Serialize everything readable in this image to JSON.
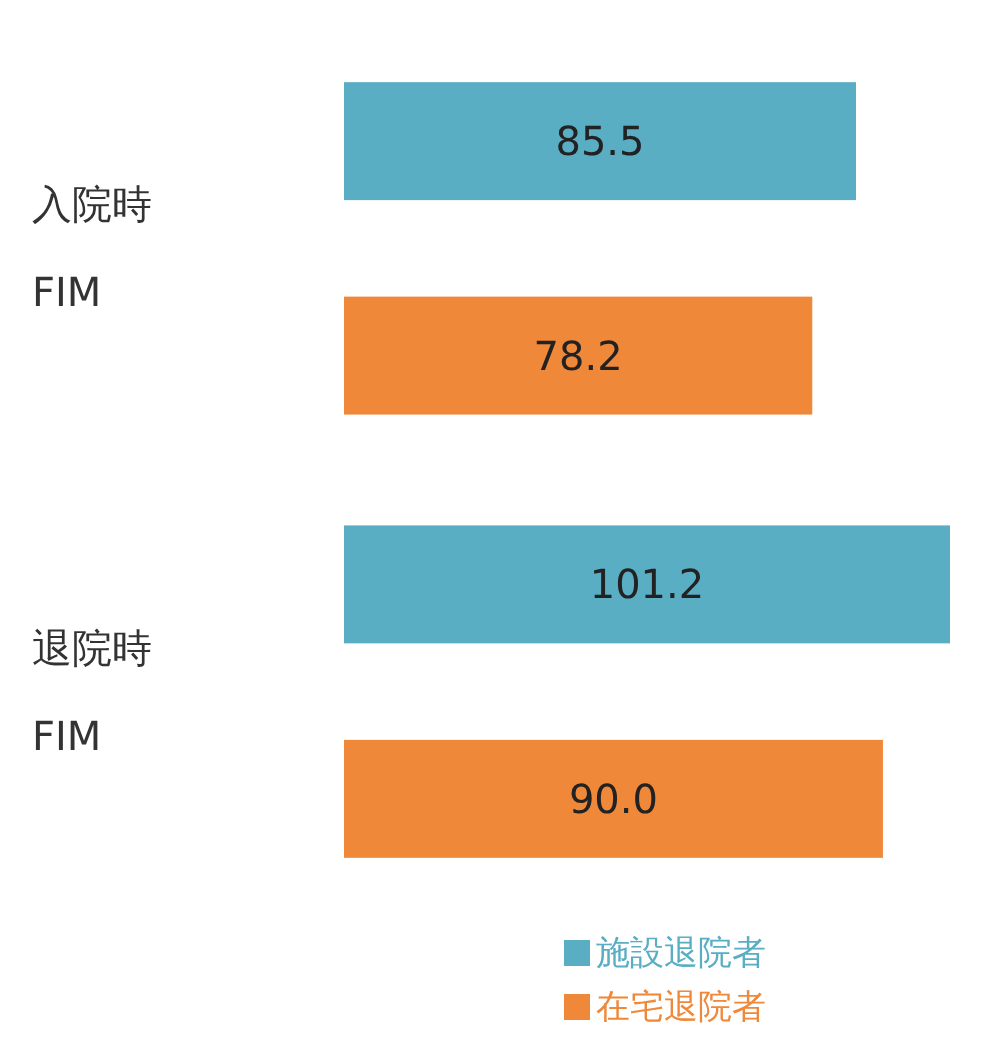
{
  "chart_data": {
    "type": "bar",
    "orientation": "horizontal",
    "categories": [
      "入院時\nFIM",
      "退院時\nFIM"
    ],
    "series": [
      {
        "name": "施設退院者",
        "color": "#5aaec4",
        "values": [
          85.5,
          101.2
        ],
        "value_labels": [
          "85.5",
          "101.2"
        ]
      },
      {
        "name": "在宅退院者",
        "color": "#f0883a",
        "values": [
          78.2,
          90.0
        ],
        "value_labels": [
          "78.2",
          "90.0"
        ]
      }
    ],
    "legend": "bottom right"
  }
}
